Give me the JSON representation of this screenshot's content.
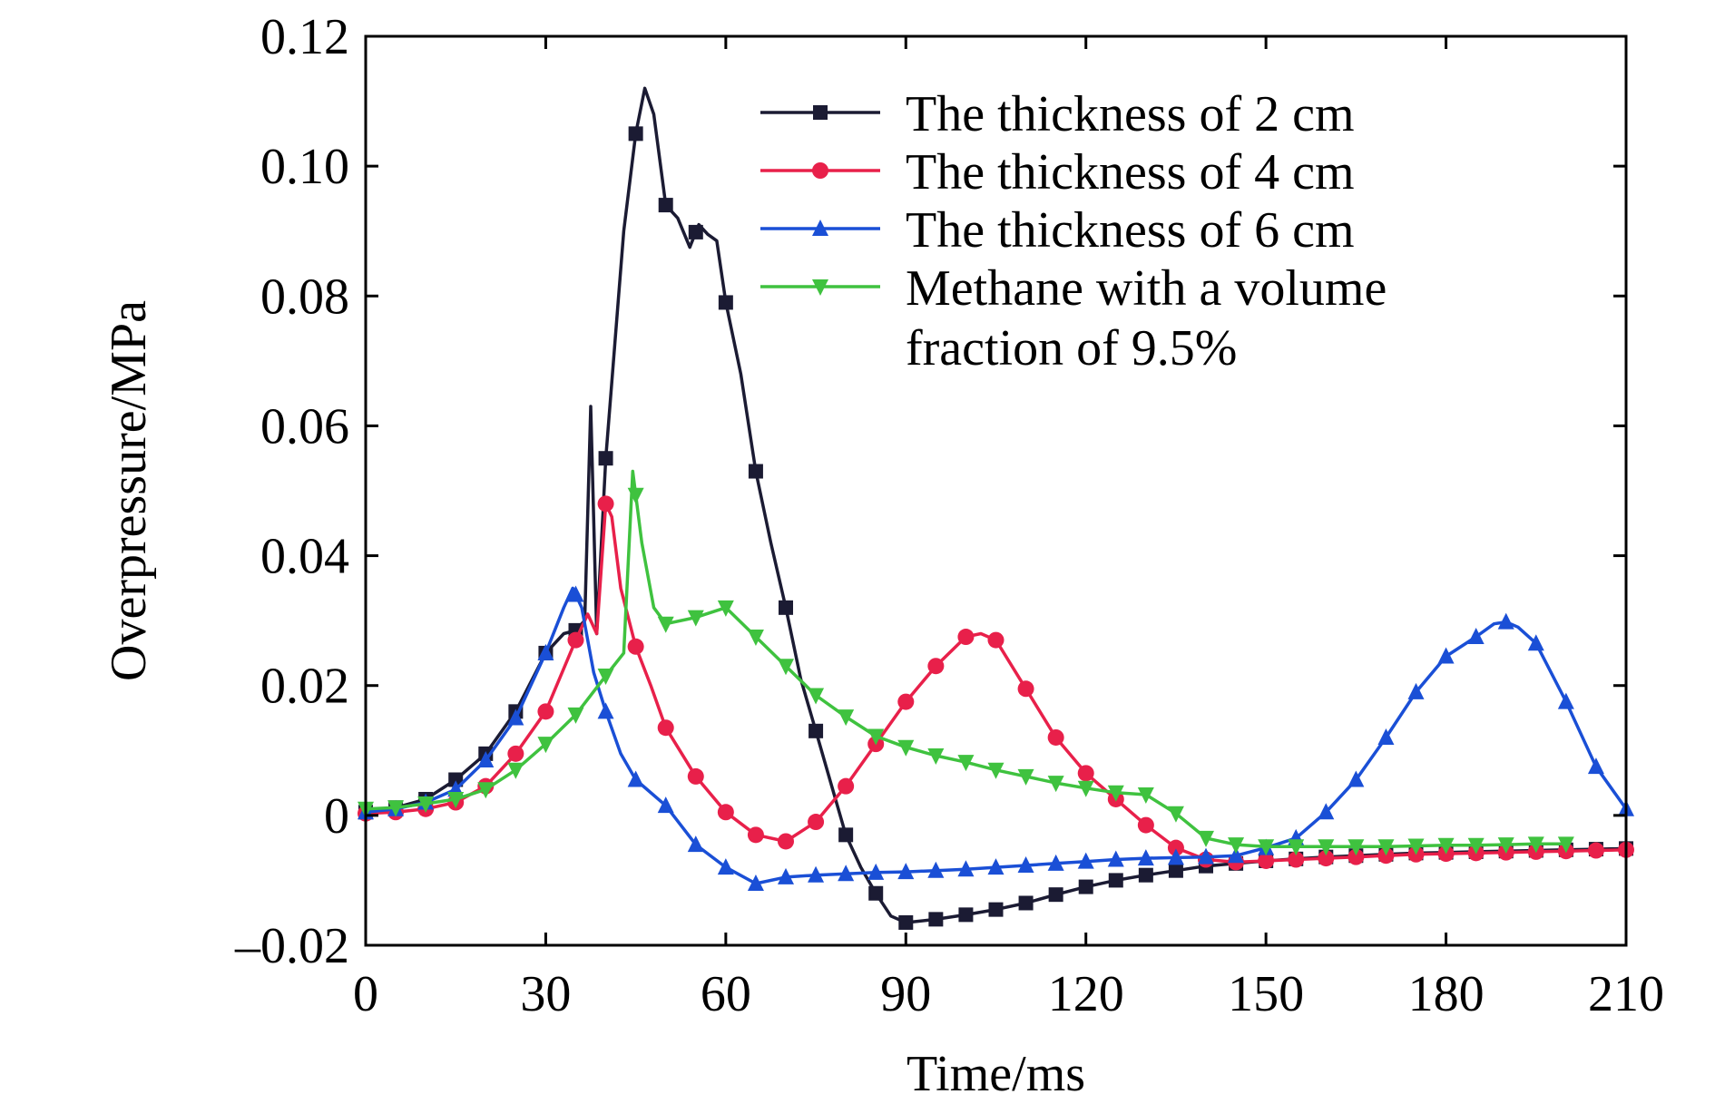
{
  "chart_data": {
    "type": "line",
    "title": "",
    "xlabel": "Time/ms",
    "ylabel": "Overpressure/MPa",
    "xlim": [
      0,
      210
    ],
    "ylim": [
      -0.02,
      0.12
    ],
    "grid": false,
    "legend_position": "top-right",
    "x_ticks": [
      0,
      30,
      60,
      90,
      120,
      150,
      180,
      210
    ],
    "x_tick_labels": [
      "0",
      "30",
      "60",
      "90",
      "120",
      "150",
      "180",
      "210"
    ],
    "y_ticks": [
      -0.02,
      0,
      0.02,
      0.04,
      0.06,
      0.08,
      0.1,
      0.12
    ],
    "y_tick_labels": [
      "–0.02",
      "0",
      "0.02",
      "0.04",
      "0.06",
      "0.08",
      "0.10",
      "0.12"
    ],
    "series": [
      {
        "name": "The thickness of 2 cm",
        "color": "#1b1b33",
        "marker": "square",
        "points": [
          [
            0,
            0.0005
          ],
          [
            5,
            0.0012
          ],
          [
            10,
            0.0025
          ],
          [
            15,
            0.0055
          ],
          [
            20,
            0.0095
          ],
          [
            25,
            0.016
          ],
          [
            30,
            0.025
          ],
          [
            33,
            0.028
          ],
          [
            35,
            0.0285
          ],
          [
            36.5,
            0.03
          ],
          [
            37.5,
            0.063
          ],
          [
            38.5,
            0.028
          ],
          [
            40,
            0.055
          ],
          [
            43,
            0.09
          ],
          [
            45,
            0.105
          ],
          [
            46.5,
            0.112
          ],
          [
            48,
            0.108
          ],
          [
            50,
            0.094
          ],
          [
            52,
            0.092
          ],
          [
            54,
            0.0875
          ],
          [
            55.5,
            0.091
          ],
          [
            57,
            0.0895
          ],
          [
            58.5,
            0.0885
          ],
          [
            60,
            0.079
          ],
          [
            62.5,
            0.068
          ],
          [
            65,
            0.053
          ],
          [
            67.5,
            0.042
          ],
          [
            70,
            0.032
          ],
          [
            72.5,
            0.021
          ],
          [
            75,
            0.013
          ],
          [
            77.5,
            0.005
          ],
          [
            80,
            -0.003
          ],
          [
            82.5,
            -0.008
          ],
          [
            85,
            -0.012
          ],
          [
            87.5,
            -0.0155
          ],
          [
            90,
            -0.0165
          ],
          [
            95,
            -0.016
          ],
          [
            100,
            -0.0153
          ],
          [
            105,
            -0.0145
          ],
          [
            110,
            -0.0135
          ],
          [
            115,
            -0.0122
          ],
          [
            120,
            -0.011
          ],
          [
            125,
            -0.01
          ],
          [
            130,
            -0.0092
          ],
          [
            135,
            -0.0085
          ],
          [
            140,
            -0.0078
          ],
          [
            145,
            -0.0074
          ],
          [
            150,
            -0.007
          ],
          [
            155,
            -0.0067
          ],
          [
            160,
            -0.0064
          ],
          [
            165,
            -0.0062
          ],
          [
            170,
            -0.006
          ],
          [
            175,
            -0.0058
          ],
          [
            180,
            -0.0057
          ],
          [
            185,
            -0.0056
          ],
          [
            190,
            -0.0055
          ],
          [
            195,
            -0.0054
          ],
          [
            200,
            -0.0053
          ],
          [
            205,
            -0.0052
          ],
          [
            210,
            -0.0051
          ]
        ],
        "marker_x": [
          0,
          5,
          10,
          15,
          20,
          25,
          30,
          35,
          40,
          45,
          50,
          55,
          60,
          65,
          70,
          75,
          80,
          85,
          90,
          95,
          100,
          105,
          110,
          115,
          120,
          125,
          130,
          135,
          140,
          145,
          150,
          155,
          160,
          165,
          170,
          175,
          180,
          185,
          190,
          195,
          200,
          205,
          210
        ]
      },
      {
        "name": "The thickness of 4 cm",
        "color": "#e8204a",
        "marker": "circle",
        "points": [
          [
            0,
            0.0003
          ],
          [
            5,
            0.0005
          ],
          [
            10,
            0.001
          ],
          [
            15,
            0.002
          ],
          [
            20,
            0.0045
          ],
          [
            25,
            0.0095
          ],
          [
            30,
            0.016
          ],
          [
            35,
            0.027
          ],
          [
            37,
            0.031
          ],
          [
            38.5,
            0.028
          ],
          [
            40,
            0.048
          ],
          [
            41,
            0.046
          ],
          [
            42.5,
            0.035
          ],
          [
            45,
            0.026
          ],
          [
            47.5,
            0.02
          ],
          [
            50,
            0.0135
          ],
          [
            55,
            0.006
          ],
          [
            60,
            0.0005
          ],
          [
            65,
            -0.003
          ],
          [
            70,
            -0.004
          ],
          [
            75,
            -0.001
          ],
          [
            80,
            0.0045
          ],
          [
            85,
            0.011
          ],
          [
            90,
            0.0175
          ],
          [
            95,
            0.023
          ],
          [
            100,
            0.0275
          ],
          [
            102.5,
            0.028
          ],
          [
            105,
            0.027
          ],
          [
            110,
            0.0195
          ],
          [
            115,
            0.012
          ],
          [
            120,
            0.0065
          ],
          [
            125,
            0.0025
          ],
          [
            130,
            -0.0015
          ],
          [
            135,
            -0.005
          ],
          [
            140,
            -0.0068
          ],
          [
            145,
            -0.0072
          ],
          [
            150,
            -0.007
          ],
          [
            155,
            -0.0068
          ],
          [
            160,
            -0.0066
          ],
          [
            165,
            -0.0064
          ],
          [
            170,
            -0.0062
          ],
          [
            175,
            -0.006
          ],
          [
            180,
            -0.0059
          ],
          [
            185,
            -0.0058
          ],
          [
            190,
            -0.0057
          ],
          [
            195,
            -0.0056
          ],
          [
            200,
            -0.0055
          ],
          [
            205,
            -0.0054
          ],
          [
            210,
            -0.0053
          ]
        ],
        "marker_x": [
          0,
          5,
          10,
          15,
          20,
          25,
          30,
          35,
          40,
          45,
          50,
          55,
          60,
          65,
          70,
          75,
          80,
          85,
          90,
          95,
          100,
          105,
          110,
          115,
          120,
          125,
          130,
          135,
          140,
          145,
          150,
          155,
          160,
          165,
          170,
          175,
          180,
          185,
          190,
          195,
          200,
          205,
          210
        ]
      },
      {
        "name": "The thickness of 6 cm",
        "color": "#1a4fd6",
        "marker": "triangle-up",
        "points": [
          [
            0,
            0.0005
          ],
          [
            5,
            0.001
          ],
          [
            10,
            0.002
          ],
          [
            15,
            0.004
          ],
          [
            20,
            0.0085
          ],
          [
            25,
            0.015
          ],
          [
            30,
            0.025
          ],
          [
            33,
            0.032
          ],
          [
            34.5,
            0.035
          ],
          [
            36,
            0.032
          ],
          [
            38,
            0.022
          ],
          [
            40,
            0.016
          ],
          [
            42.5,
            0.0095
          ],
          [
            45,
            0.0055
          ],
          [
            50,
            0.0015
          ],
          [
            55,
            -0.0045
          ],
          [
            60,
            -0.008
          ],
          [
            65,
            -0.0105
          ],
          [
            70,
            -0.0095
          ],
          [
            75,
            -0.0092
          ],
          [
            80,
            -0.009
          ],
          [
            85,
            -0.0088
          ],
          [
            90,
            -0.0087
          ],
          [
            95,
            -0.0085
          ],
          [
            100,
            -0.0083
          ],
          [
            105,
            -0.008
          ],
          [
            110,
            -0.0077
          ],
          [
            115,
            -0.0074
          ],
          [
            120,
            -0.0071
          ],
          [
            125,
            -0.0068
          ],
          [
            130,
            -0.0066
          ],
          [
            135,
            -0.0065
          ],
          [
            140,
            -0.0064
          ],
          [
            145,
            -0.0062
          ],
          [
            150,
            -0.005
          ],
          [
            155,
            -0.0035
          ],
          [
            160,
            0.0005
          ],
          [
            165,
            0.0055
          ],
          [
            170,
            0.012
          ],
          [
            175,
            0.019
          ],
          [
            180,
            0.0245
          ],
          [
            185,
            0.0275
          ],
          [
            188,
            0.0295
          ],
          [
            190,
            0.0298
          ],
          [
            192,
            0.029
          ],
          [
            195,
            0.0265
          ],
          [
            200,
            0.0175
          ],
          [
            205,
            0.0075
          ],
          [
            210,
            0.001
          ]
        ],
        "marker_x": [
          0,
          5,
          10,
          15,
          20,
          25,
          30,
          35,
          40,
          45,
          50,
          55,
          60,
          65,
          70,
          75,
          80,
          85,
          90,
          95,
          100,
          105,
          110,
          115,
          120,
          125,
          130,
          135,
          140,
          145,
          150,
          155,
          160,
          165,
          170,
          175,
          180,
          185,
          190,
          195,
          200,
          205,
          210
        ]
      },
      {
        "name": "Methane with a volume fraction of 9.5%",
        "legend_lines": [
          "Methane with a volume",
          "fraction of 9.5%"
        ],
        "color": "#3fc23f",
        "marker": "triangle-down",
        "points": [
          [
            0,
            0.001
          ],
          [
            5,
            0.0012
          ],
          [
            10,
            0.0018
          ],
          [
            15,
            0.0025
          ],
          [
            20,
            0.004
          ],
          [
            25,
            0.007
          ],
          [
            30,
            0.011
          ],
          [
            35,
            0.0155
          ],
          [
            40,
            0.0215
          ],
          [
            43,
            0.025
          ],
          [
            44.5,
            0.053
          ],
          [
            46,
            0.042
          ],
          [
            48,
            0.032
          ],
          [
            50,
            0.0295
          ],
          [
            55,
            0.0305
          ],
          [
            60,
            0.032
          ],
          [
            65,
            0.0275
          ],
          [
            70,
            0.023
          ],
          [
            75,
            0.0185
          ],
          [
            80,
            0.0152
          ],
          [
            85,
            0.0122
          ],
          [
            90,
            0.0105
          ],
          [
            95,
            0.0092
          ],
          [
            100,
            0.0082
          ],
          [
            105,
            0.007
          ],
          [
            110,
            0.006
          ],
          [
            115,
            0.005
          ],
          [
            120,
            0.0042
          ],
          [
            125,
            0.0035
          ],
          [
            130,
            0.0032
          ],
          [
            135,
            0.0003
          ],
          [
            140,
            -0.0035
          ],
          [
            145,
            -0.0045
          ],
          [
            150,
            -0.0048
          ],
          [
            155,
            -0.0048
          ],
          [
            160,
            -0.0048
          ],
          [
            165,
            -0.0048
          ],
          [
            170,
            -0.0048
          ],
          [
            175,
            -0.0047
          ],
          [
            180,
            -0.0046
          ],
          [
            185,
            -0.0046
          ],
          [
            190,
            -0.0045
          ],
          [
            195,
            -0.0044
          ],
          [
            200,
            -0.0044
          ]
        ],
        "marker_x": [
          0,
          5,
          10,
          15,
          20,
          25,
          30,
          35,
          40,
          45,
          50,
          55,
          60,
          65,
          70,
          75,
          80,
          85,
          90,
          95,
          100,
          105,
          110,
          115,
          120,
          125,
          130,
          135,
          140,
          145,
          150,
          155,
          160,
          165,
          170,
          175,
          180,
          185,
          190,
          195,
          200
        ]
      }
    ]
  }
}
